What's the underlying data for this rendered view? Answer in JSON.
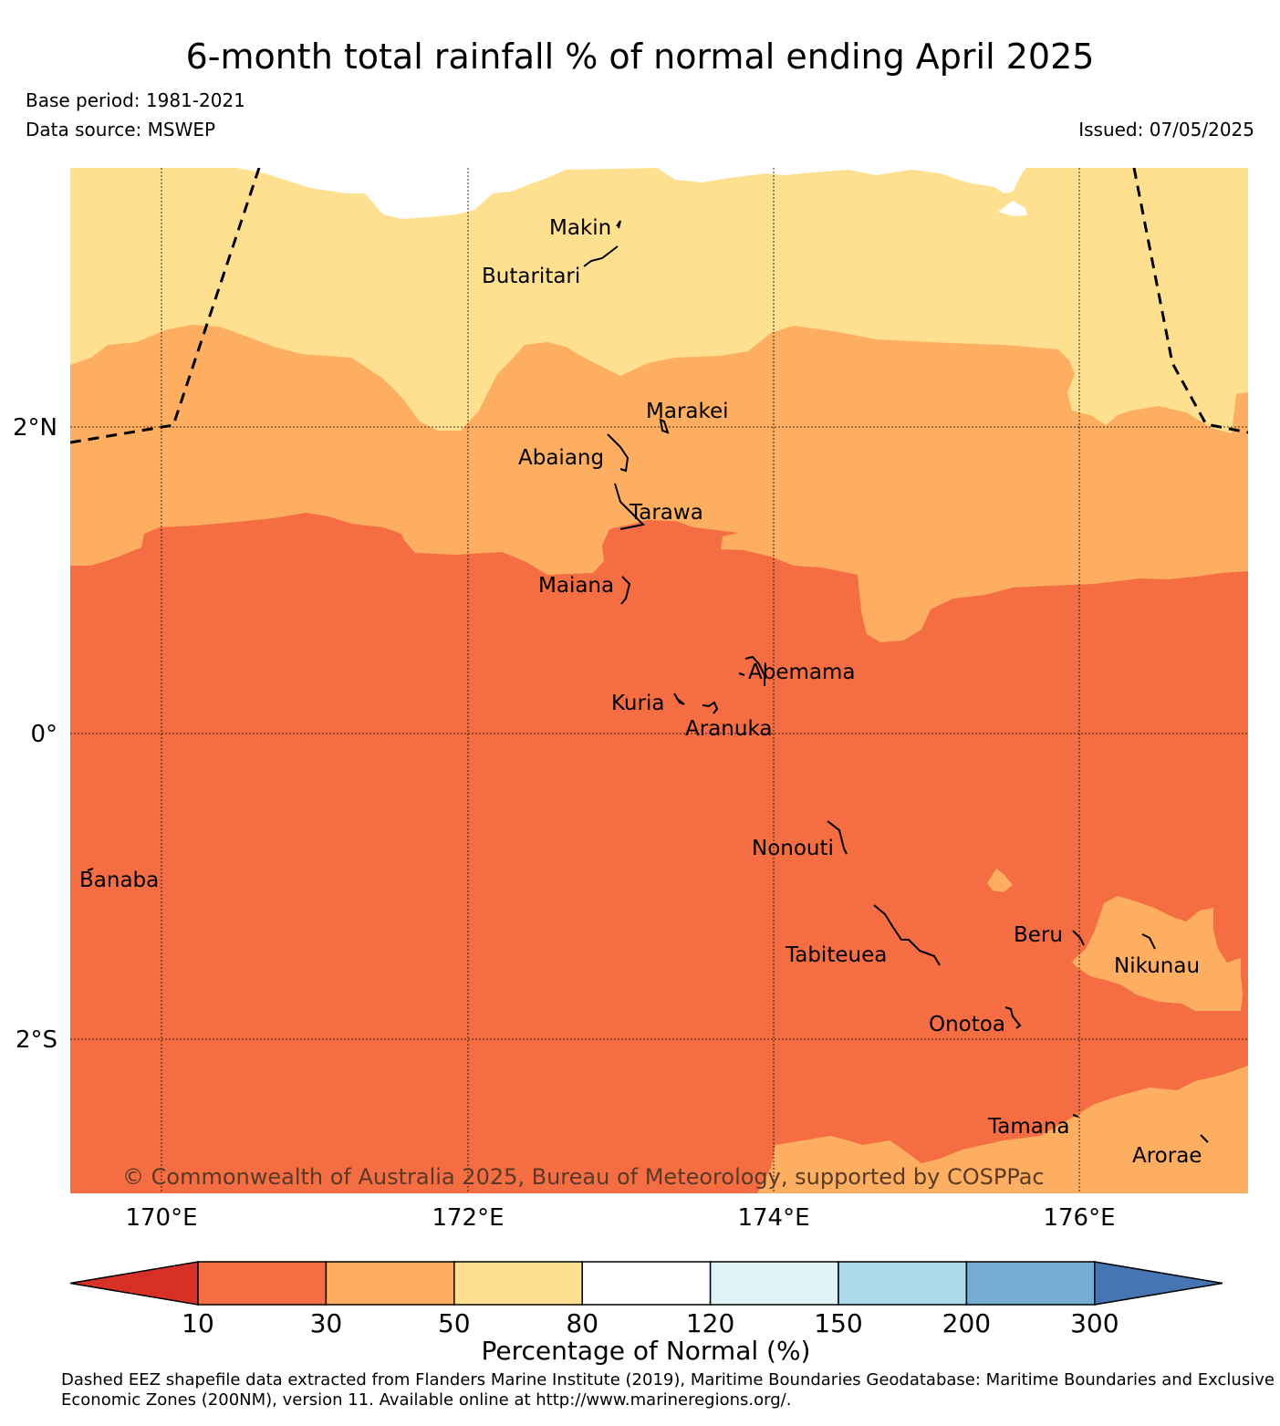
{
  "title": "6-month total rainfall % of normal ending April 2025",
  "base_period": "Base period: 1981-2021",
  "data_source": "Data source: MSWEP",
  "issued": "Issued: 07/05/2025",
  "lon_ticks": [
    "170°E",
    "172°E",
    "174°E",
    "176°E"
  ],
  "lat_ticks": [
    "2°N",
    "0°",
    "2°S"
  ],
  "places": {
    "makin": "Makin",
    "butaritari": "Butaritari",
    "marakei": "Marakei",
    "abaiang": "Abaiang",
    "tarawa": "Tarawa",
    "maiana": "Maiana",
    "abemama": "Abemama",
    "kuria": "Kuria",
    "aranuka": "Aranuka",
    "nonouti": "Nonouti",
    "banaba": "Banaba",
    "beru": "Beru",
    "nikunau": "Nikunau",
    "tabiteuea": "Tabiteuea",
    "onotoa": "Onotoa",
    "tamana": "Tamana",
    "arorae": "Arorae"
  },
  "copyright": "© Commonwealth of Australia 2025, Bureau of Meteorology, supported by COSPPac",
  "colorbar": {
    "label": "Percentage of Normal (%)",
    "ticks": [
      "10",
      "30",
      "50",
      "80",
      "120",
      "150",
      "200",
      "300"
    ],
    "colors": [
      "#d73027",
      "#f46d43",
      "#fdae61",
      "#fee090",
      "#ffffff",
      "#e0f3f8",
      "#abd9e9",
      "#74add1",
      "#4575b4"
    ]
  },
  "legend_colors": {
    "10-30": "#f46d43",
    "30-50": "#fdae61",
    "50-80": "#fee090",
    "gt-120": "#ffffff"
  },
  "footnote": "Dashed EEZ shapefile data extracted from Flanders Marine Institute (2019), Maritime Boundaries Geodatabase: Maritime Boundaries and Exclusive Economic Zones (200NM), version 11. Available online at http://www.marineregions.org/."
}
